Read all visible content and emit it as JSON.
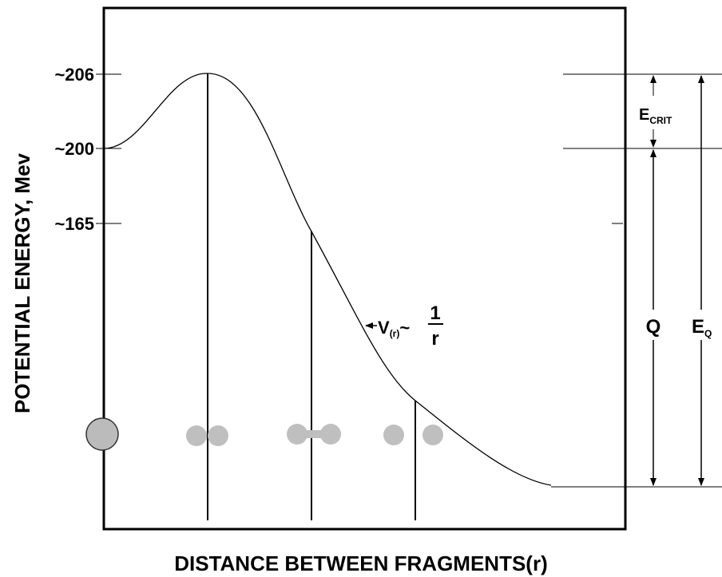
{
  "axes": {
    "y_title": "POTENTIAL ENERGY, Mev",
    "x_title": "DISTANCE BETWEEN FRAGMENTS(r)"
  },
  "levels": [
    "~206",
    "~200",
    "~165"
  ],
  "annotations": {
    "e_crit": {
      "main": "E",
      "sub": "CRIT"
    },
    "q": "Q",
    "e_q": {
      "main": "E",
      "sub": "Q"
    },
    "potential": {
      "main": "V",
      "sub": "(r)",
      "approx": "~",
      "numerator": "1",
      "denominator": "r"
    }
  }
}
